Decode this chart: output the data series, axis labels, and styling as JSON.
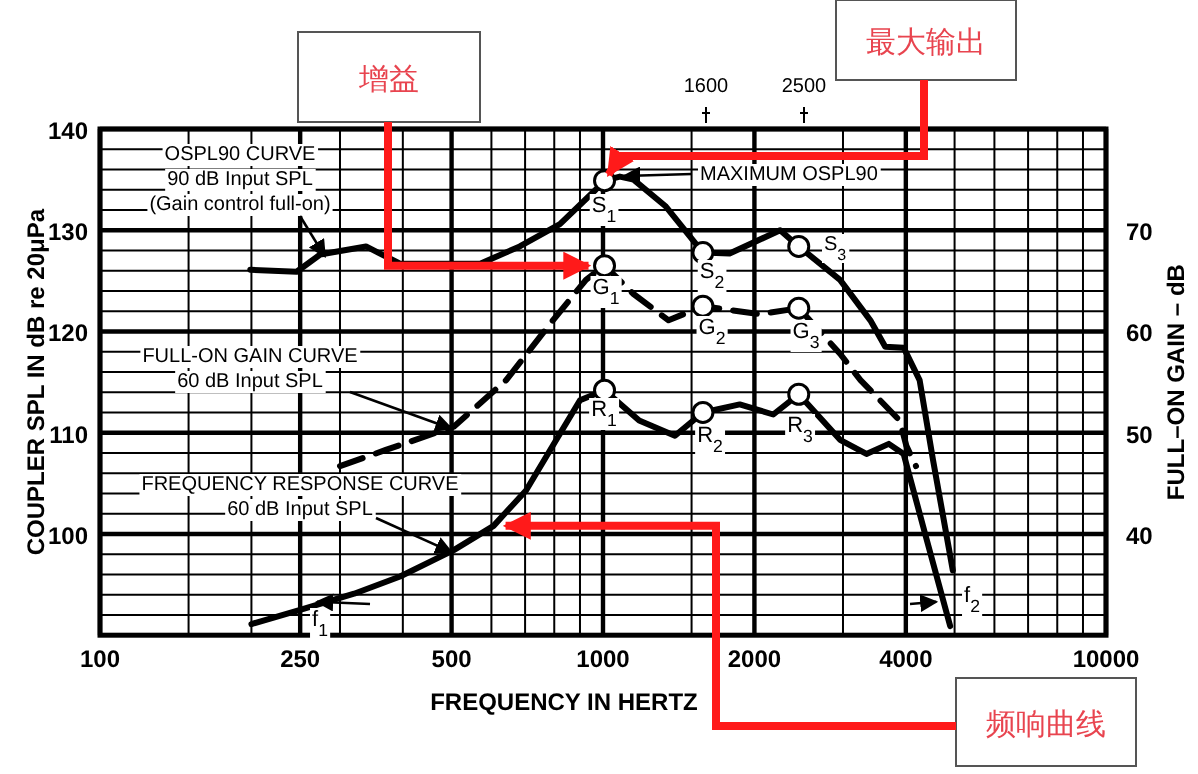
{
  "chart_data": {
    "type": "line",
    "xlabel": "FREQUENCY IN HERTZ",
    "ylabel": "COUPLER SPL IN dB re 20μPa",
    "y2label": "FULL–ON GAIN – dB",
    "log": "x",
    "xlim": [
      100,
      10000
    ],
    "xticks": [
      100,
      250,
      500,
      1000,
      2000,
      4000,
      10000
    ],
    "ylim": [
      90,
      140
    ],
    "yticks": [
      100,
      110,
      120,
      130,
      140
    ],
    "y2lim": [
      30,
      80
    ],
    "y2ticks": [
      40,
      50,
      60,
      70
    ],
    "grid": true,
    "series": [
      {
        "color": "#000000",
        "line_style": "solid",
        "x": [
          199,
          246,
          274,
          338,
          367,
          395,
          570,
          683,
          821,
          967,
          1007,
          1080,
          1150,
          1330,
          1580,
          1785,
          2250,
          2450,
          2960,
          3400,
          3640,
          3960,
          4260,
          4530,
          4960
        ],
        "values": [
          126.1,
          125.9,
          127.6,
          128.4,
          127.5,
          126.7,
          126.7,
          128.4,
          130.6,
          134,
          134.9,
          135.3,
          135,
          132.4,
          127.8,
          127.7,
          130,
          128.4,
          125.1,
          121.1,
          118.5,
          118.4,
          115.2,
          107.3,
          96.4
        ]
      },
      {
        "color": "#000000",
        "line_style": "dashed",
        "axis": "y2",
        "x": [
          300,
          370,
          505,
          642,
          795,
          925,
          1007,
          1150,
          1350,
          1580,
          2050,
          2450,
          2960,
          3250,
          3890,
          4010,
          4190
        ],
        "values": [
          46.7,
          48.3,
          50.6,
          55.2,
          61.1,
          65.1,
          66.5,
          63.7,
          61.1,
          62.5,
          61.7,
          62.3,
          57.8,
          55.2,
          51.2,
          48.7,
          46.7
        ]
      },
      {
        "color": "#000000",
        "line_style": "solid",
        "x": [
          200,
          250,
          320,
          395,
          505,
          606,
          703,
          821,
          900,
          1007,
          1180,
          1390,
          1580,
          1870,
          2180,
          2450,
          2960,
          3340,
          3700,
          3960,
          4370,
          4900
        ],
        "values": [
          91.1,
          92.5,
          94.1,
          95.8,
          98.4,
          100.8,
          104.3,
          109.9,
          113.2,
          114.2,
          111.2,
          109.7,
          112,
          112.8,
          111.8,
          113.8,
          109.3,
          107.9,
          108.9,
          107.9,
          100,
          90.9
        ]
      },
      {
        "type": "scatter",
        "marker": "circle",
        "color": "#000000",
        "x": [
          1007,
          1580,
          2450
        ],
        "values": [
          134.9,
          127.8,
          128.4
        ]
      },
      {
        "type": "scatter",
        "marker": "circle",
        "color": "#000000",
        "axis": "y2",
        "x": [
          1007,
          1580,
          2450
        ],
        "values": [
          66.5,
          62.5,
          62.3
        ]
      },
      {
        "type": "scatter",
        "marker": "circle",
        "color": "#000000",
        "x": [
          1007,
          1580,
          2450
        ],
        "values": [
          114.2,
          112,
          113.8
        ]
      }
    ],
    "annotations": [
      {
        "text": "OSPL90 CURVE\n90 dB Input SPL\n(Gain control full-on)",
        "x": 280,
        "y": 127.4
      },
      {
        "text": "FULL-ON GAIN CURVE\n60 dB Input SPL",
        "x": 500,
        "y": 110.4
      },
      {
        "text": "FREQUENCY RESPONSE CURVE\n60 dB Input SPL",
        "x": 500,
        "y": 98.2
      },
      "MAXIMUM OSPL90",
      {
        "text": "S$_{1}$",
        "x": 1007,
        "y": 134.9
      },
      {
        "text": "S$_{2}$",
        "x": 1580,
        "y": 127.8
      },
      {
        "text": "S$_{3}$",
        "x": 2450,
        "y": 128.4
      },
      {
        "text": "G$_{1}$",
        "x": 1007,
        "y": 126.5
      },
      {
        "text": "G$_{2}$",
        "x": 1580,
        "y": 122.5
      },
      {
        "text": "G$_{3}$",
        "x": 2450,
        "y": 122.3
      },
      {
        "text": "R$_{1}$",
        "x": 1007,
        "y": 114.2
      },
      {
        "text": "R$_{2}$",
        "x": 1580,
        "y": 112
      },
      {
        "text": "R$_{3}$",
        "x": 2450,
        "y": 113.8
      },
      {
        "text": "f$_{1}$",
        "x": 270,
        "y": 93.3
      },
      {
        "text": "f$_{2}$",
        "x": 4600,
        "y": 93.3
      },
      {
        "text": "增益",
        "x": 1007,
        "y": 126.5
      },
      {
        "text": "最大输出",
        "x": 1007,
        "y": 134.9
      },
      {
        "text": "频响曲线",
        "x": 606,
        "y": 100.8
      },
      "1600",
      "2500"
    ]
  }
}
